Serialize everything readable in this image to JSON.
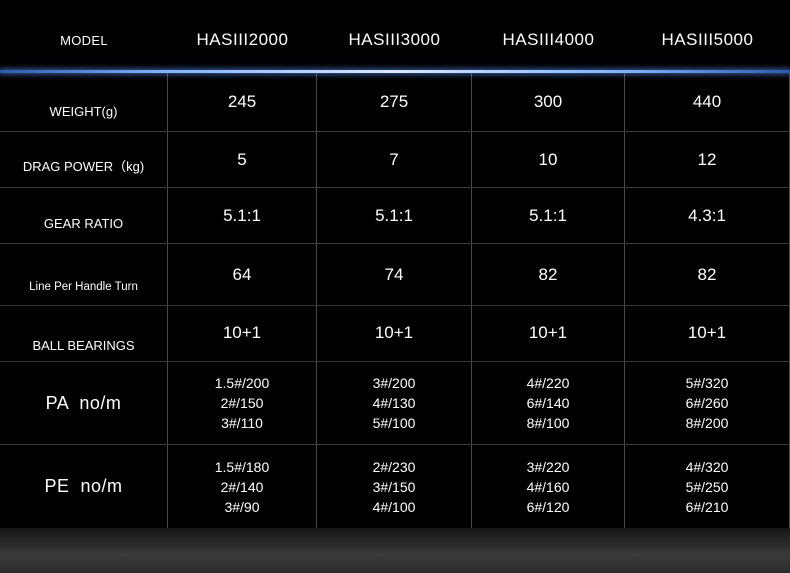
{
  "header": {
    "label": "MODEL",
    "models": [
      "HASIII2000",
      "HASIII3000",
      "HASIII4000",
      "HASIII5000"
    ]
  },
  "rows": [
    {
      "label": "WEIGHT(g)",
      "values": [
        "245",
        "275",
        "300",
        "440"
      ]
    },
    {
      "label": "DRAG POWER（kg)",
      "values": [
        "5",
        "7",
        "10",
        "12"
      ]
    },
    {
      "label": "GEAR RATIO",
      "values": [
        "5.1:1",
        "5.1:1",
        "5.1:1",
        "4.3:1"
      ]
    },
    {
      "label": "Line Per Handle Turn",
      "values": [
        "64",
        "74",
        "82",
        "82"
      ]
    },
    {
      "label": "BALL BEARINGS",
      "values": [
        "10+1",
        "10+1",
        "10+1",
        "10+1"
      ]
    },
    {
      "label": "PA  no/m",
      "values": [
        [
          "1.5#/200",
          "2#/150",
          "3#/110"
        ],
        [
          "3#/200",
          "4#/130",
          "5#/100"
        ],
        [
          "4#/220",
          "6#/140",
          "8#/100"
        ],
        [
          "5#/320",
          "6#/260",
          "8#/200"
        ]
      ]
    },
    {
      "label": "PE  no/m",
      "values": [
        [
          "1.5#/180",
          "2#/140",
          "3#/90"
        ],
        [
          "2#/230",
          "3#/150",
          "4#/100"
        ],
        [
          "3#/220",
          "4#/160",
          "6#/120"
        ],
        [
          "4#/320",
          "5#/250",
          "6#/210"
        ]
      ]
    }
  ]
}
